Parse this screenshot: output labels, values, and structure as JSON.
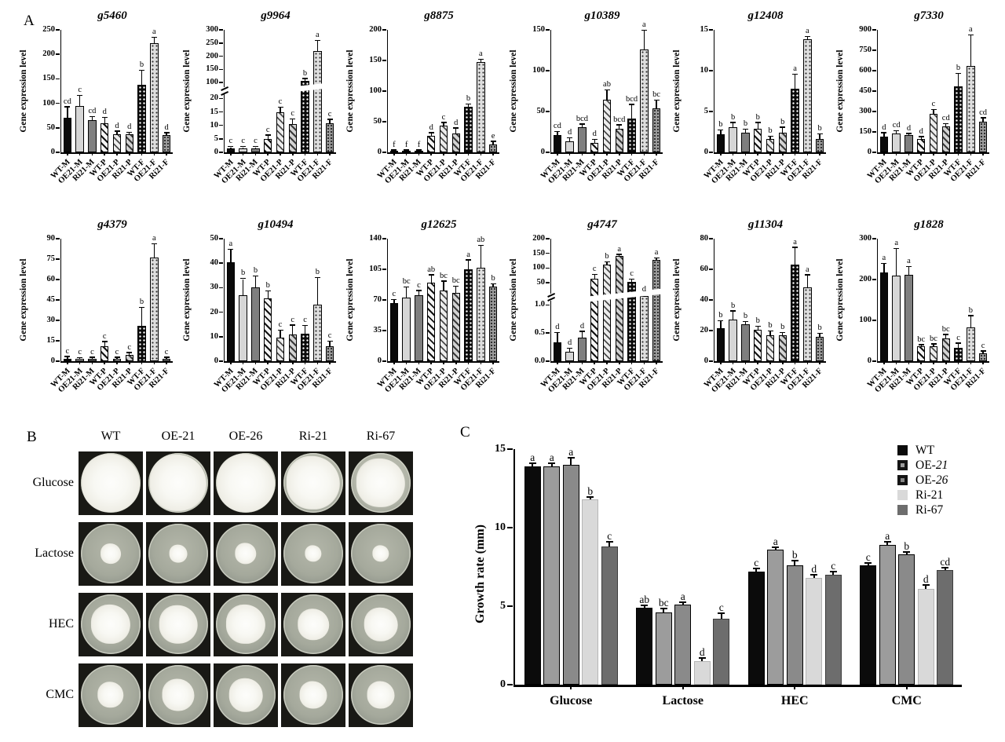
{
  "panels": {
    "a_label": "A",
    "b_label": "B",
    "c_label": "C"
  },
  "gene_axis": {
    "ylabel": "Gene expression level",
    "categories": [
      "WT-M",
      "OE21-M",
      "Ri21-M",
      "WT-P",
      "OE21-P",
      "Ri21-P",
      "WT-F",
      "OE21-F",
      "Ri21-F"
    ],
    "bar_patterns": [
      "solid-black",
      "solid-light",
      "solid-dark",
      "hatch-dark",
      "hatch-light",
      "hatch-mid",
      "dot-black",
      "dot-light",
      "dot-mid"
    ]
  },
  "chart_data": [
    {
      "type": "bar",
      "panel": "A",
      "title": "g5460",
      "ylabel": "Gene expression level",
      "ylim": [
        0,
        250
      ],
      "ticks": [
        0,
        50,
        100,
        150,
        200,
        250
      ],
      "categories": [
        "WT-M",
        "OE21-M",
        "Ri21-M",
        "WT-P",
        "OE21-P",
        "Ri21-P",
        "WT-F",
        "OE21-F",
        "Ri21-F"
      ],
      "values": [
        70,
        95,
        65,
        60,
        37,
        37,
        138,
        222,
        35
      ],
      "errors": [
        22,
        20,
        7,
        10,
        5,
        3,
        28,
        12,
        4
      ],
      "letters": [
        "cd",
        "c",
        "cd",
        "d",
        "d",
        "d",
        "b",
        "a",
        "d"
      ]
    },
    {
      "type": "bar",
      "panel": "A",
      "title": "g9964",
      "ylabel": "Gene expression level",
      "ylim": [
        0,
        300
      ],
      "ticks": [
        0,
        5,
        10,
        15,
        20,
        100,
        150,
        200,
        250,
        300
      ],
      "scale_points": [
        [
          0,
          0
        ],
        [
          20,
          0.44
        ],
        [
          100,
          0.57
        ],
        [
          300,
          1.0
        ]
      ],
      "break_frac": 0.5,
      "categories": [
        "WT-M",
        "OE21-M",
        "Ri21-M",
        "WT-P",
        "OE21-P",
        "Ri21-P",
        "WT-F",
        "OE21-F",
        "Ri21-F"
      ],
      "values": [
        1.5,
        1.5,
        1.5,
        5,
        15,
        10.5,
        105,
        220,
        10.8
      ],
      "errors": [
        0.4,
        0.4,
        0.4,
        1.2,
        1.5,
        1.6,
        8,
        38,
        1.2
      ],
      "letters": [
        "c",
        "c",
        "c",
        "c",
        "c",
        "c",
        "b",
        "a",
        "c"
      ]
    },
    {
      "type": "bar",
      "panel": "A",
      "title": "g8875",
      "ylabel": "Gene expression level",
      "ylim": [
        0,
        200
      ],
      "ticks": [
        0,
        50,
        100,
        150,
        200
      ],
      "categories": [
        "WT-M",
        "OE21-M",
        "Ri21-M",
        "WT-P",
        "OE21-P",
        "Ri21-P",
        "WT-F",
        "OE21-F",
        "Ri21-F"
      ],
      "values": [
        2,
        2,
        2,
        27,
        43,
        31,
        74,
        147,
        13
      ],
      "errors": [
        1,
        1,
        1,
        4,
        5,
        8,
        4,
        4,
        4
      ],
      "letters": [
        "f",
        "f",
        "f",
        "d",
        "c",
        "d",
        "b",
        "a",
        "e"
      ]
    },
    {
      "type": "bar",
      "panel": "A",
      "title": "g10389",
      "ylabel": "Gene expression level",
      "ylim": [
        0,
        150
      ],
      "ticks": [
        0,
        50,
        100,
        150
      ],
      "categories": [
        "WT-M",
        "OE21-M",
        "Ri21-M",
        "WT-P",
        "OE21-P",
        "Ri21-P",
        "WT-F",
        "OE21-F",
        "Ri21-F"
      ],
      "values": [
        21,
        13,
        31,
        12,
        64,
        29,
        41,
        126,
        54
      ],
      "errors": [
        4,
        4,
        3,
        3,
        12,
        4,
        17,
        23,
        9
      ],
      "letters": [
        "cd",
        "d",
        "bcd",
        "d",
        "ab",
        "bcd",
        "bcd",
        "a",
        "bc"
      ]
    },
    {
      "type": "bar",
      "panel": "A",
      "title": "g12408",
      "ylabel": "Gene expression level",
      "ylim": [
        0,
        15
      ],
      "ticks": [
        0,
        5,
        10,
        15
      ],
      "categories": [
        "WT-M",
        "OE21-M",
        "Ri21-M",
        "WT-P",
        "OE21-P",
        "Ri21-P",
        "WT-F",
        "OE21-F",
        "Ri21-F"
      ],
      "values": [
        2.2,
        3.1,
        2.4,
        2.9,
        1.6,
        2.4,
        7.8,
        13.8,
        1.6
      ],
      "errors": [
        0.5,
        0.5,
        0.4,
        0.7,
        0.3,
        0.6,
        1.7,
        0.3,
        0.6
      ],
      "letters": [
        "b",
        "b",
        "b",
        "b",
        "b",
        "b",
        "a",
        "a",
        "b"
      ]
    },
    {
      "type": "bar",
      "panel": "A",
      "title": "g7330",
      "ylabel": "Gene expression level",
      "ylim": [
        0,
        900
      ],
      "ticks": [
        0,
        150,
        300,
        450,
        600,
        750,
        900
      ],
      "categories": [
        "WT-M",
        "OE21-M",
        "Ri21-M",
        "WT-P",
        "OE21-P",
        "Ri21-P",
        "WT-F",
        "OE21-F",
        "Ri21-F"
      ],
      "values": [
        115,
        140,
        125,
        100,
        285,
        190,
        485,
        635,
        225
      ],
      "errors": [
        25,
        15,
        10,
        12,
        25,
        15,
        90,
        225,
        25
      ],
      "letters": [
        "d",
        "cd",
        "d",
        "d",
        "c",
        "cd",
        "b",
        "a",
        "cd"
      ]
    },
    {
      "type": "bar",
      "panel": "A",
      "title": "g4379",
      "ylabel": "Gene expression level",
      "ylim": [
        0,
        90
      ],
      "ticks": [
        0,
        15,
        30,
        45,
        60,
        75,
        90
      ],
      "categories": [
        "WT-M",
        "OE21-M",
        "Ri21-M",
        "WT-P",
        "OE21-P",
        "Ri21-P",
        "WT-F",
        "OE21-F",
        "Ri21-F"
      ],
      "values": [
        2,
        1.5,
        2,
        11,
        2,
        4.5,
        26,
        76,
        2
      ],
      "errors": [
        1,
        0.6,
        0.6,
        3,
        0.6,
        1.5,
        13,
        10,
        0.6
      ],
      "letters": [
        "c",
        "c",
        "c",
        "c",
        "c",
        "c",
        "b",
        "a",
        "c"
      ]
    },
    {
      "type": "bar",
      "panel": "A",
      "title": "g10494",
      "ylabel": "Gene expression level",
      "ylim": [
        0,
        50
      ],
      "ticks": [
        0,
        10,
        20,
        30,
        40,
        50
      ],
      "categories": [
        "WT-M",
        "OE21-M",
        "Ri21-M",
        "WT-P",
        "OE21-P",
        "Ri21-P",
        "WT-F",
        "OE21-F",
        "Ri21-F"
      ],
      "values": [
        40.5,
        27,
        30,
        25.5,
        9.5,
        11,
        11.3,
        23,
        6
      ],
      "errors": [
        5,
        6.5,
        4.5,
        3,
        3,
        3.5,
        3,
        11,
        2
      ],
      "letters": [
        "a",
        "b",
        "b",
        "b",
        "c",
        "c",
        "c",
        "b",
        "c"
      ]
    },
    {
      "type": "bar",
      "panel": "A",
      "title": "g12625",
      "ylabel": "Gene expression level",
      "ylim": [
        0,
        140
      ],
      "ticks": [
        0,
        35,
        70,
        105,
        140
      ],
      "categories": [
        "WT-M",
        "OE21-M",
        "Ri21-M",
        "WT-P",
        "OE21-P",
        "Ri21-P",
        "WT-F",
        "OE21-F",
        "Ri21-F"
      ],
      "values": [
        66,
        73,
        75,
        90,
        81,
        78,
        105,
        107,
        85
      ],
      "errors": [
        4,
        11,
        5,
        8,
        10,
        7,
        10,
        25,
        3
      ],
      "letters": [
        "c",
        "bc",
        "c",
        "ab",
        "bc",
        "bc",
        "a",
        "ab",
        "b"
      ]
    },
    {
      "type": "bar",
      "panel": "A",
      "title": "g4747",
      "ylabel": "Gene expression level",
      "ylim": [
        0,
        200
      ],
      "ticks": [
        0,
        0.5,
        1,
        50,
        100,
        150,
        200
      ],
      "tick_labels": [
        "0.0",
        "0.5",
        "1.0",
        "50",
        "100",
        "150",
        "200"
      ],
      "scale_points": [
        [
          0,
          0
        ],
        [
          1,
          0.46
        ],
        [
          50,
          0.64
        ],
        [
          200,
          1.0
        ]
      ],
      "break_frac": 0.52,
      "categories": [
        "WT-M",
        "OE21-M",
        "Ri21-M",
        "WT-P",
        "OE21-P",
        "Ri21-P",
        "WT-F",
        "OE21-F",
        "Ri21-F"
      ],
      "values": [
        0.33,
        0.17,
        0.42,
        65,
        112,
        140,
        53,
        20,
        128
      ],
      "errors": [
        0.17,
        0.05,
        0.1,
        12,
        8,
        5,
        8,
        2,
        5
      ],
      "letters": [
        "d",
        "d",
        "d",
        "c",
        "b",
        "a",
        "c",
        "d",
        "a"
      ]
    },
    {
      "type": "bar",
      "panel": "A",
      "title": "g11304",
      "ylabel": "Gene expression level",
      "ylim": [
        0,
        80
      ],
      "ticks": [
        0,
        20,
        40,
        60,
        80
      ],
      "categories": [
        "WT-M",
        "OE21-M",
        "Ri21-M",
        "WT-P",
        "OE21-P",
        "Ri21-P",
        "WT-F",
        "OE21-F",
        "Ri21-F"
      ],
      "values": [
        21.5,
        27,
        24,
        20.5,
        17,
        17,
        63,
        48,
        16
      ],
      "errors": [
        4.5,
        5.5,
        1.5,
        2,
        2.5,
        1.5,
        11,
        8,
        2
      ],
      "letters": [
        "b",
        "b",
        "b",
        "b",
        "b",
        "b",
        "a",
        "a",
        "b"
      ]
    },
    {
      "type": "bar",
      "panel": "A",
      "title": "g1828",
      "ylabel": "Gene expression level",
      "ylim": [
        0,
        300
      ],
      "ticks": [
        0,
        100,
        200,
        300
      ],
      "categories": [
        "WT-M",
        "OE21-M",
        "Ri21-M",
        "WT-P",
        "OE21-P",
        "Ri21-P",
        "WT-F",
        "OE21-F",
        "Ri21-F"
      ],
      "values": [
        218,
        210,
        212,
        36,
        37,
        56,
        33,
        82,
        20
      ],
      "errors": [
        20,
        65,
        18,
        3,
        4,
        8,
        10,
        28,
        4
      ],
      "letters": [
        "a",
        "a",
        "a",
        "bc",
        "bc",
        "bc",
        "c",
        "b",
        "c"
      ]
    },
    {
      "type": "grouped_bar",
      "panel": "C",
      "ylabel": "Growth rate (mm)",
      "ylim": [
        0,
        15
      ],
      "ticks": [
        0,
        5,
        10,
        15
      ],
      "categories": [
        "Glucose",
        "Lactose",
        "HEC",
        "CMC"
      ],
      "series": [
        {
          "name": "WT",
          "values": [
            13.9,
            4.9,
            7.2,
            7.6
          ],
          "errors": [
            0.15,
            0.1,
            0.15,
            0.1
          ],
          "letters": [
            "a",
            "ab",
            "c",
            "c"
          ]
        },
        {
          "name": "OE-21",
          "values": [
            13.9,
            4.6,
            8.6,
            8.9
          ],
          "errors": [
            0.15,
            0.2,
            0.1,
            0.15
          ],
          "letters": [
            "a",
            "bc",
            "a",
            "a"
          ]
        },
        {
          "name": "OE-26",
          "values": [
            14.0,
            5.1,
            7.6,
            8.3
          ],
          "errors": [
            0.4,
            0.1,
            0.25,
            0.1
          ],
          "letters": [
            "a",
            "a",
            "b",
            "b"
          ]
        },
        {
          "name": "Ri-21",
          "values": [
            11.8,
            1.5,
            6.8,
            6.1
          ],
          "errors": [
            0.1,
            0.15,
            0.15,
            0.2
          ],
          "letters": [
            "b",
            "d",
            "d",
            "d"
          ]
        },
        {
          "name": "Ri-67",
          "values": [
            8.8,
            4.2,
            7.0,
            7.3
          ],
          "errors": [
            0.25,
            0.3,
            0.15,
            0.1
          ],
          "letters": [
            "c",
            "c",
            "c",
            "cd"
          ]
        }
      ],
      "legend": [
        {
          "label": "WT",
          "italic_part": ""
        },
        {
          "label": "OE-",
          "italic_part": "21"
        },
        {
          "label": "OE-",
          "italic_part": "26"
        },
        {
          "label": "Ri-21",
          "italic_part": ""
        },
        {
          "label": "Ri-67",
          "italic_part": ""
        }
      ],
      "legend_position": "top-right",
      "grid": false
    }
  ],
  "panel_b": {
    "columns": [
      "WT",
      "OE-21",
      "OE-26",
      "Ri-21",
      "Ri-67"
    ],
    "rows": [
      "Glucose",
      "Lactose",
      "HEC",
      "CMC"
    ],
    "colony_scale": [
      [
        0.97,
        0.95,
        0.97,
        0.9,
        0.82
      ],
      [
        0.34,
        0.3,
        0.36,
        0.28,
        0.28
      ],
      [
        0.66,
        0.64,
        0.66,
        0.52,
        0.56
      ],
      [
        0.44,
        0.54,
        0.56,
        0.46,
        0.46
      ]
    ]
  }
}
